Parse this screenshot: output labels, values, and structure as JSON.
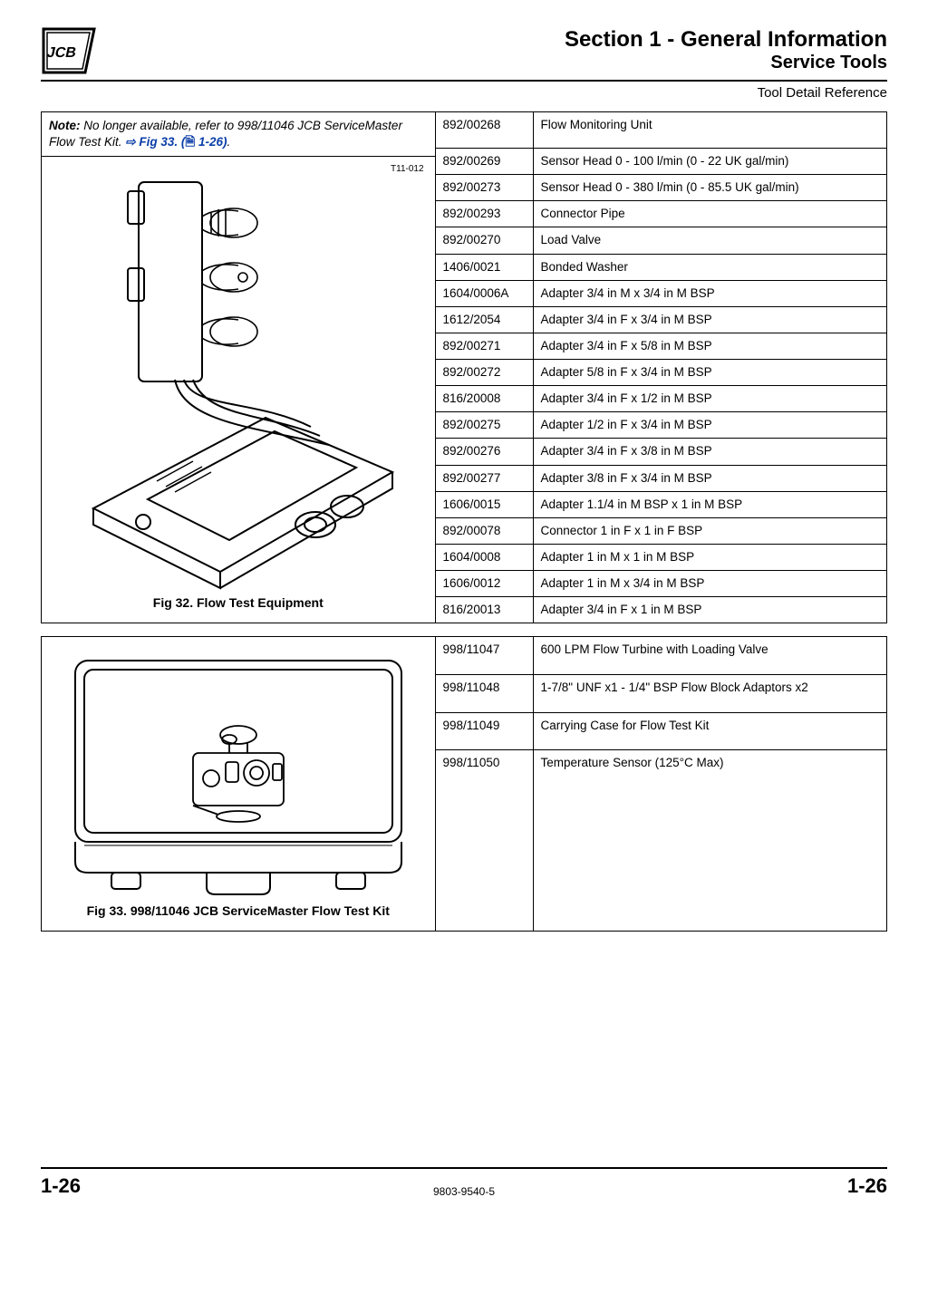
{
  "header": {
    "section": "Section 1 - General Information",
    "subsection": "Service Tools",
    "reference": "Tool Detail Reference"
  },
  "block1": {
    "note_label": "Note:",
    "note_body": " No longer available, refer to 998/11046 JCB ServiceMaster Flow Test Kit. ",
    "xref_arrow": "⇨ ",
    "xref_text": "Fig 33. (",
    "xref_icon": "🗎",
    "xref_tail": " 1-26)",
    "note_period": ".",
    "tcode": "T11-012",
    "caption": "Fig 32. Flow Test Equipment",
    "rows": [
      {
        "pn": "892/00268",
        "desc": "Flow Monitoring Unit"
      },
      {
        "pn": "892/00269",
        "desc": "Sensor Head 0 - 100 l/min (0 - 22 UK gal/min)"
      },
      {
        "pn": "892/00273",
        "desc": "Sensor Head 0 - 380 l/min (0 - 85.5 UK gal/min)"
      },
      {
        "pn": "892/00293",
        "desc": "Connector Pipe"
      },
      {
        "pn": "892/00270",
        "desc": "Load Valve"
      },
      {
        "pn": "1406/0021",
        "desc": "Bonded Washer"
      },
      {
        "pn": "1604/0006A",
        "desc": "Adapter 3/4 in M x 3/4 in M BSP"
      },
      {
        "pn": "1612/2054",
        "desc": "Adapter 3/4 in F x 3/4 in M BSP"
      },
      {
        "pn": "892/00271",
        "desc": "Adapter 3/4 in F x 5/8 in M BSP"
      },
      {
        "pn": "892/00272",
        "desc": "Adapter 5/8 in F x 3/4 in M BSP"
      },
      {
        "pn": "816/20008",
        "desc": "Adapter 3/4 in F x 1/2 in M BSP"
      },
      {
        "pn": "892/00275",
        "desc": "Adapter 1/2 in F x 3/4 in M BSP"
      },
      {
        "pn": "892/00276",
        "desc": "Adapter 3/4 in F x 3/8 in M BSP"
      },
      {
        "pn": "892/00277",
        "desc": "Adapter 3/8 in F x 3/4 in M BSP"
      },
      {
        "pn": "1606/0015",
        "desc": "Adapter 1.1/4 in M BSP x 1 in M BSP"
      },
      {
        "pn": "892/00078",
        "desc": "Connector 1 in F x 1 in F BSP"
      },
      {
        "pn": "1604/0008",
        "desc": "Adapter 1 in M x 1 in M BSP"
      },
      {
        "pn": "1606/0012",
        "desc": "Adapter 1 in M x 3/4 in M BSP"
      },
      {
        "pn": "816/20013",
        "desc": "Adapter 3/4 in F x 1 in M BSP"
      }
    ]
  },
  "block2": {
    "caption": "Fig 33. 998/11046 JCB ServiceMaster Flow Test Kit",
    "rows": [
      {
        "pn": "998/11047",
        "desc": "600 LPM Flow Turbine with Loading Valve"
      },
      {
        "pn": "998/11048",
        "desc": "1-7/8\" UNF x1 - 1/4\" BSP Flow Block Adaptors x2"
      },
      {
        "pn": "998/11049",
        "desc": "Carrying Case for Flow Test Kit"
      },
      {
        "pn": "998/11050",
        "desc": "Temperature Sensor (125°C Max)"
      }
    ]
  },
  "footer": {
    "page": "1-26",
    "docnum": "9803-9540-5"
  },
  "colors": {
    "link": "#0b3ea8"
  }
}
